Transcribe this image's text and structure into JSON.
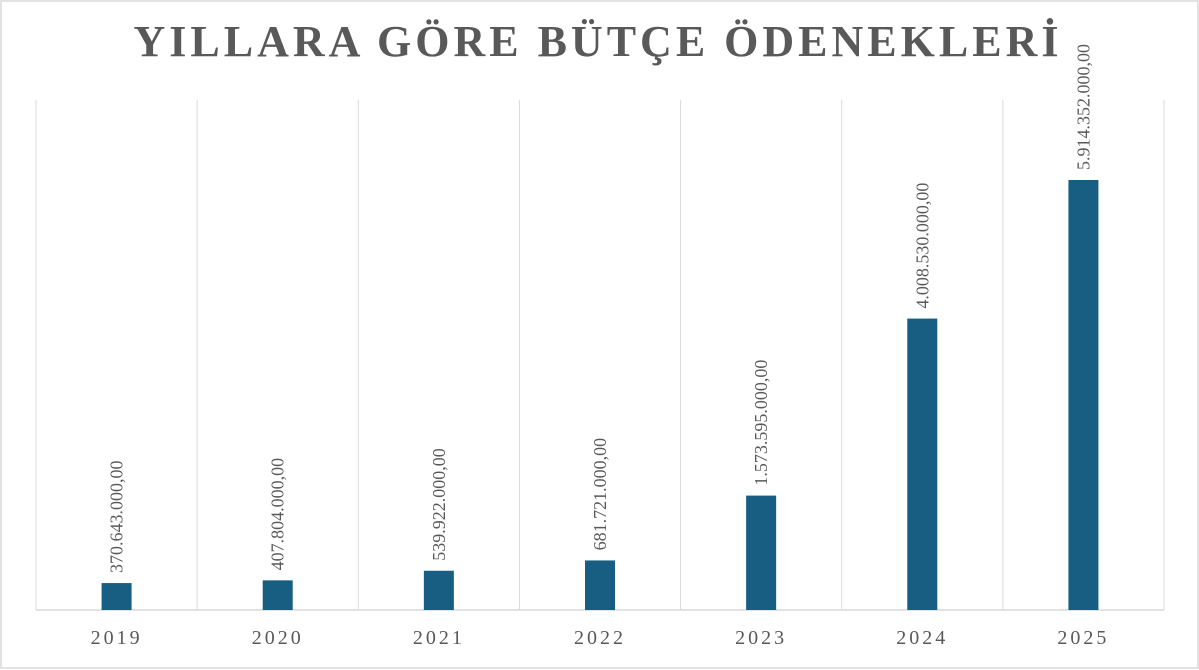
{
  "chart_data": {
    "type": "bar",
    "title": "YILLARA GÖRE BÜTÇE ÖDENEKLERİ",
    "categories": [
      "2019",
      "2020",
      "2021",
      "2022",
      "2023",
      "2024",
      "2025"
    ],
    "values": [
      370643000,
      407804000,
      539922000,
      681721000,
      1573595000,
      4008530000,
      5914352000
    ],
    "value_labels": [
      "370.643.000,00",
      "407.804.000,00",
      "539.922.000,00",
      "681.721.000,00",
      "1.573.595.000,00",
      "4.008.530.000,00",
      "5.914.352.000,00"
    ],
    "color": "#175e82"
  }
}
